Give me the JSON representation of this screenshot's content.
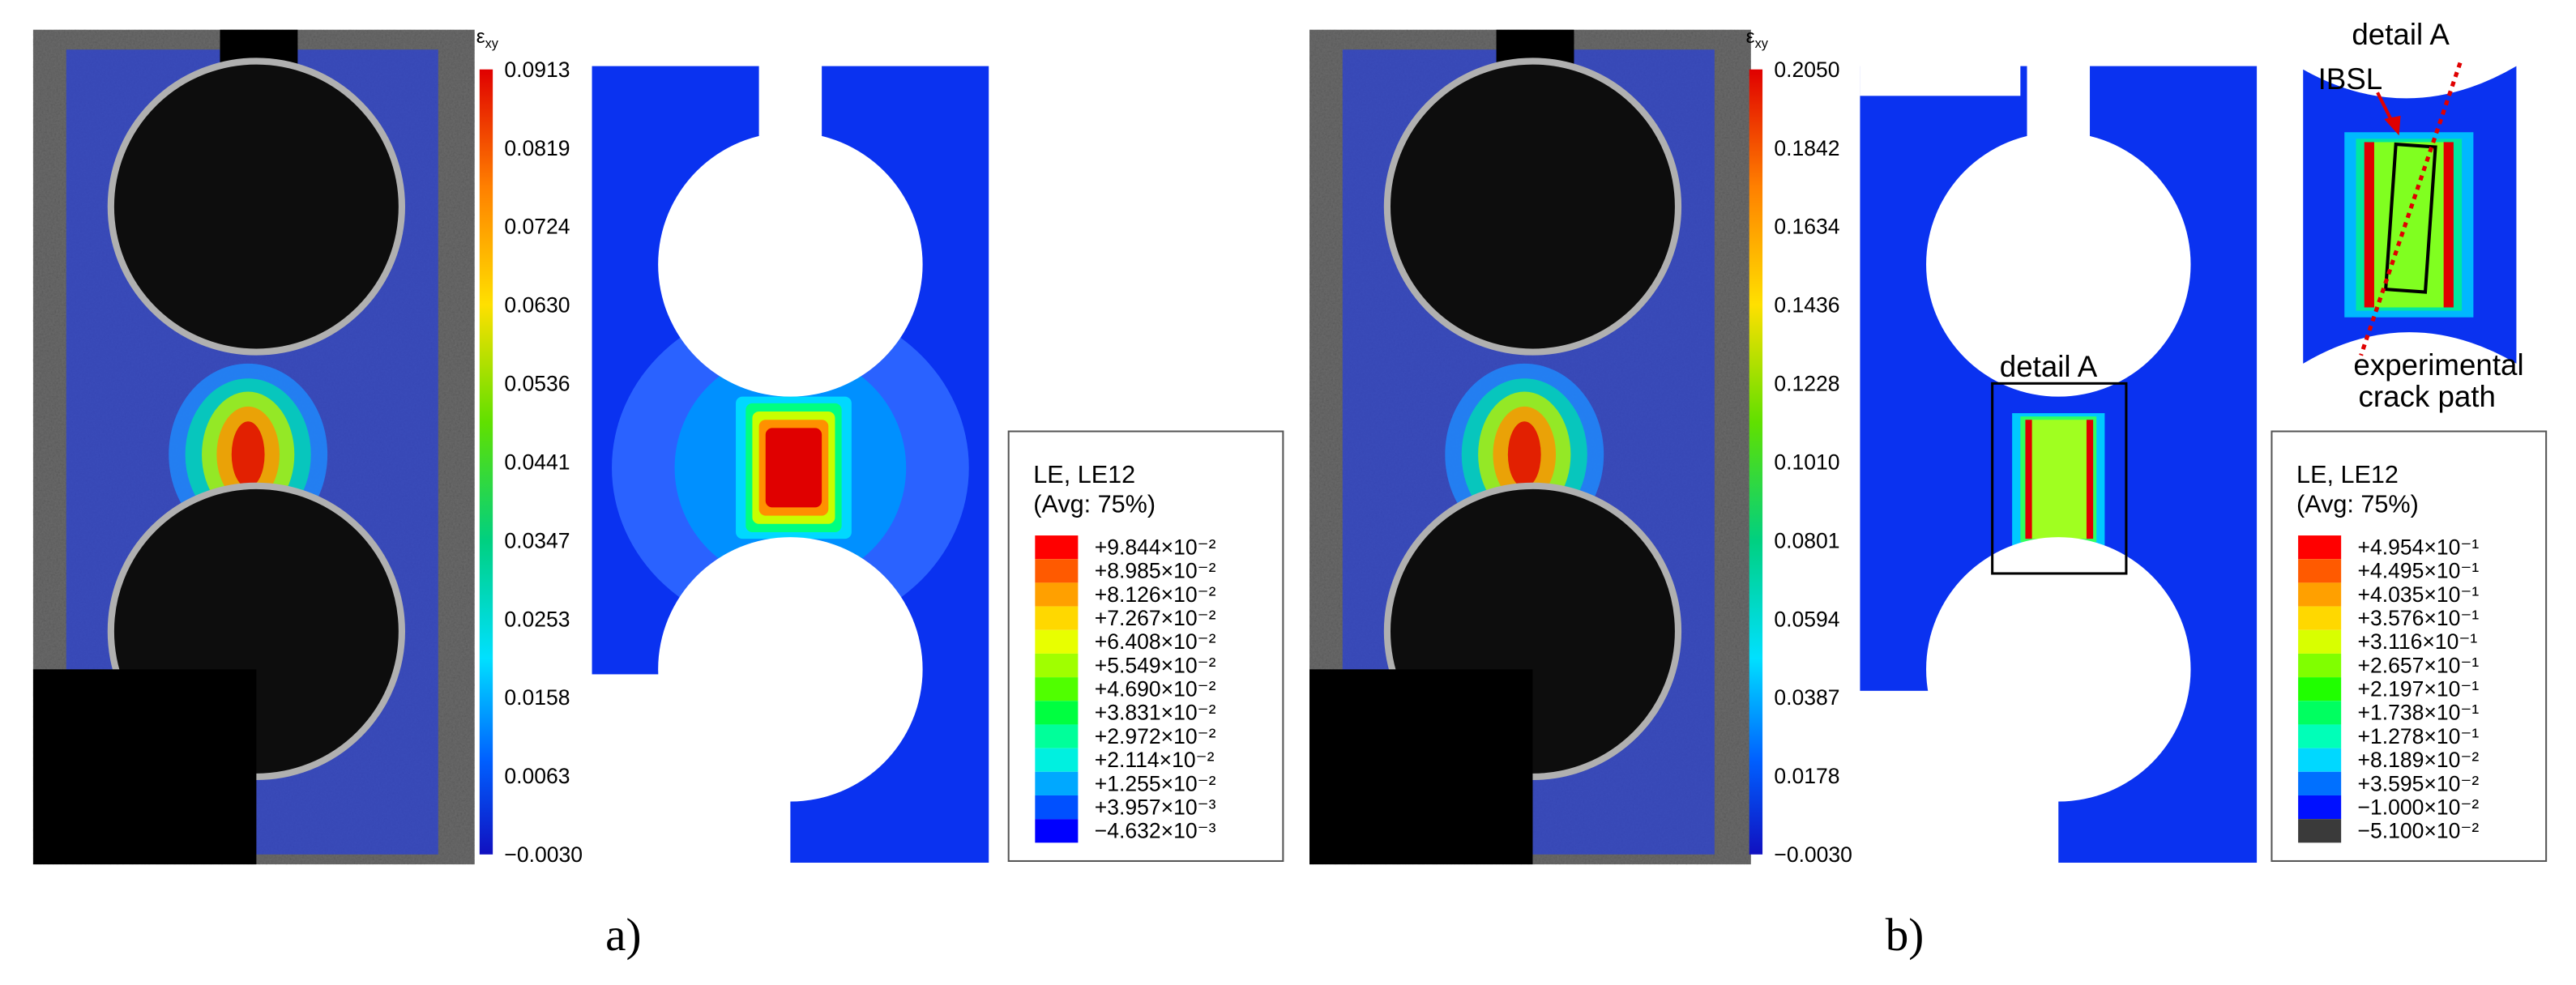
{
  "panels": [
    {
      "label": "a)",
      "dic_colorbar": {
        "symbol": "ε",
        "symbol_sub": "xy",
        "ticks": [
          "0.0913",
          "0.0819",
          "0.0724",
          "0.0630",
          "0.0536",
          "0.0441",
          "0.0347",
          "0.0253",
          "0.0158",
          "0.0063",
          "−0.0030"
        ]
      },
      "fe_legend": {
        "title": "LE, LE12",
        "subtitle": "(Avg: 75%)",
        "entries": [
          "+9.844×10⁻²",
          "+8.985×10⁻²",
          "+8.126×10⁻²",
          "+7.267×10⁻²",
          "+6.408×10⁻²",
          "+5.549×10⁻²",
          "+4.690×10⁻²",
          "+3.831×10⁻²",
          "+2.972×10⁻²",
          "+2.114×10⁻²",
          "+1.255×10⁻²",
          "+3.957×10⁻³",
          "−4.632×10⁻³"
        ]
      }
    },
    {
      "label": "b)",
      "dic_colorbar": {
        "symbol": "ε",
        "symbol_sub": "xy",
        "ticks": [
          "0.2050",
          "0.1842",
          "0.1634",
          "0.1436",
          "0.1228",
          "0.1010",
          "0.0801",
          "0.0594",
          "0.0387",
          "0.0178",
          "−0.0030"
        ]
      },
      "fe_legend": {
        "title": "LE, LE12",
        "subtitle": "(Avg: 75%)",
        "entries": [
          "+4.954×10⁻¹",
          "+4.495×10⁻¹",
          "+4.035×10⁻¹",
          "+3.576×10⁻¹",
          "+3.116×10⁻¹",
          "+2.657×10⁻¹",
          "+2.197×10⁻¹",
          "+1.738×10⁻¹",
          "+1.278×10⁻¹",
          "+8.189×10⁻²",
          "+3.595×10⁻²",
          "−1.000×10⁻²",
          "−5.100×10⁻²"
        ]
      },
      "annotations": {
        "detail_box": "detail A",
        "inset_title": "detail A",
        "ibsl": "IBSL",
        "crack_path": [
          "experimental",
          "crack path"
        ]
      }
    }
  ]
}
